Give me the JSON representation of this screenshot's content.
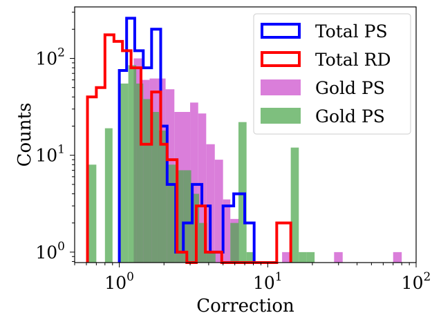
{
  "chart_data": {
    "type": "histogram",
    "xscale": "log",
    "yscale": "log",
    "xlim": [
      0.5,
      100
    ],
    "ylim": [
      0.78,
      340
    ],
    "xlabel": "Correction",
    "ylabel": "Counts",
    "xticks": [
      {
        "value": 1,
        "base": "10",
        "exp": "0"
      },
      {
        "value": 10,
        "base": "10",
        "exp": "1"
      },
      {
        "value": 100,
        "base": "10",
        "exp": "2"
      }
    ],
    "yticks": [
      {
        "value": 1,
        "base": "10",
        "exp": "0"
      },
      {
        "value": 10,
        "base": "10",
        "exp": "1"
      },
      {
        "value": 100,
        "base": "10",
        "exp": "2"
      }
    ],
    "legend_position": "top-right",
    "legend": [
      "Total PS",
      "Total RD",
      "Gold PS",
      "Gold PS"
    ],
    "series": [
      {
        "name": "Gold PS",
        "style": "filled",
        "color": "#d670d6",
        "bins": [
          {
            "x0": 1.25,
            "x1": 1.42,
            "y": 100
          },
          {
            "x0": 1.42,
            "x1": 1.6,
            "y": 60
          },
          {
            "x0": 1.6,
            "x1": 1.8,
            "y": 62
          },
          {
            "x0": 1.8,
            "x1": 2.05,
            "y": 62
          },
          {
            "x0": 2.05,
            "x1": 2.35,
            "y": 48
          },
          {
            "x0": 2.35,
            "x1": 2.65,
            "y": 28
          },
          {
            "x0": 2.65,
            "x1": 3.0,
            "y": 28
          },
          {
            "x0": 3.0,
            "x1": 3.4,
            "y": 35
          },
          {
            "x0": 3.4,
            "x1": 3.85,
            "y": 27
          },
          {
            "x0": 3.85,
            "x1": 4.4,
            "y": 13
          },
          {
            "x0": 4.4,
            "x1": 5.0,
            "y": 9
          },
          {
            "x0": 5.0,
            "x1": 5.6,
            "y": 3.5
          },
          {
            "x0": 5.6,
            "x1": 6.4,
            "y": 2.2
          },
          {
            "x0": 12.5,
            "x1": 14.3,
            "y": 1
          },
          {
            "x0": 28,
            "x1": 32,
            "y": 1
          },
          {
            "x0": 70,
            "x1": 80,
            "y": 1
          }
        ]
      },
      {
        "name": "Gold PS",
        "style": "filled",
        "color": "#4ca64c",
        "bins": [
          {
            "x0": 0.61,
            "x1": 0.7,
            "y": 8
          },
          {
            "x0": 0.8,
            "x1": 0.9,
            "y": 19
          },
          {
            "x0": 1.0,
            "x1": 1.15,
            "y": 55
          },
          {
            "x0": 1.15,
            "x1": 1.3,
            "y": 85
          },
          {
            "x0": 1.3,
            "x1": 1.45,
            "y": 55
          },
          {
            "x0": 1.45,
            "x1": 1.65,
            "y": 38
          },
          {
            "x0": 1.65,
            "x1": 1.85,
            "y": 28
          },
          {
            "x0": 1.85,
            "x1": 2.1,
            "y": 18
          },
          {
            "x0": 2.1,
            "x1": 2.4,
            "y": 8
          },
          {
            "x0": 2.4,
            "x1": 2.7,
            "y": 7
          },
          {
            "x0": 2.7,
            "x1": 3.05,
            "y": 7
          },
          {
            "x0": 3.05,
            "x1": 3.45,
            "y": 4
          },
          {
            "x0": 3.45,
            "x1": 3.9,
            "y": 2
          },
          {
            "x0": 3.9,
            "x1": 4.45,
            "y": 1
          },
          {
            "x0": 5.6,
            "x1": 6.35,
            "y": 2
          },
          {
            "x0": 6.35,
            "x1": 7.2,
            "y": 22
          },
          {
            "x0": 7.2,
            "x1": 8.1,
            "y": 1
          },
          {
            "x0": 14.3,
            "x1": 16.2,
            "y": 12
          },
          {
            "x0": 16.2,
            "x1": 18.3,
            "y": 1
          },
          {
            "x0": 18.3,
            "x1": 20.7,
            "y": 1
          }
        ]
      },
      {
        "name": "Total PS",
        "style": "step",
        "color": "#0000ff",
        "bins": [
          {
            "x0": 1.0,
            "x1": 1.12,
            "y": 75
          },
          {
            "x0": 1.12,
            "x1": 1.27,
            "y": 260
          },
          {
            "x0": 1.27,
            "x1": 1.45,
            "y": 120
          },
          {
            "x0": 1.45,
            "x1": 1.65,
            "y": 80
          },
          {
            "x0": 1.65,
            "x1": 1.9,
            "y": 200
          },
          {
            "x0": 1.9,
            "x1": 2.1,
            "y": 20
          },
          {
            "x0": 2.1,
            "x1": 2.4,
            "y": 5
          },
          {
            "x0": 2.4,
            "x1": 2.7,
            "y": 1
          },
          {
            "x0": 2.7,
            "x1": 3.1,
            "y": 2
          },
          {
            "x0": 3.1,
            "x1": 3.6,
            "y": 5
          },
          {
            "x0": 3.6,
            "x1": 4.1,
            "y": 3
          },
          {
            "x0": 4.1,
            "x1": 5.0,
            "y": 1
          },
          {
            "x0": 5.0,
            "x1": 5.9,
            "y": 3
          },
          {
            "x0": 5.9,
            "x1": 7.0,
            "y": 4
          },
          {
            "x0": 7.0,
            "x1": 8.1,
            "y": 2
          }
        ]
      },
      {
        "name": "Total RD",
        "style": "step",
        "color": "#ff0000",
        "bins": [
          {
            "x0": 0.61,
            "x1": 0.7,
            "y": 40
          },
          {
            "x0": 0.7,
            "x1": 0.8,
            "y": 50
          },
          {
            "x0": 0.8,
            "x1": 0.92,
            "y": 175
          },
          {
            "x0": 0.92,
            "x1": 1.05,
            "y": 150
          },
          {
            "x0": 1.05,
            "x1": 1.2,
            "y": 120
          },
          {
            "x0": 1.2,
            "x1": 1.4,
            "y": 80
          },
          {
            "x0": 1.4,
            "x1": 1.65,
            "y": 13
          },
          {
            "x0": 1.65,
            "x1": 1.9,
            "y": 45
          },
          {
            "x0": 1.9,
            "x1": 2.1,
            "y": 13
          },
          {
            "x0": 2.1,
            "x1": 2.45,
            "y": 9
          },
          {
            "x0": 2.45,
            "x1": 2.85,
            "y": 1
          },
          {
            "x0": 2.85,
            "x1": 3.3,
            "y": 0.78
          },
          {
            "x0": 3.3,
            "x1": 3.8,
            "y": 3
          },
          {
            "x0": 3.8,
            "x1": 4.9,
            "y": 1
          },
          {
            "x0": 4.9,
            "x1": 11.5,
            "y": 0.78
          },
          {
            "x0": 11.5,
            "x1": 14.3,
            "y": 2
          }
        ]
      }
    ]
  }
}
